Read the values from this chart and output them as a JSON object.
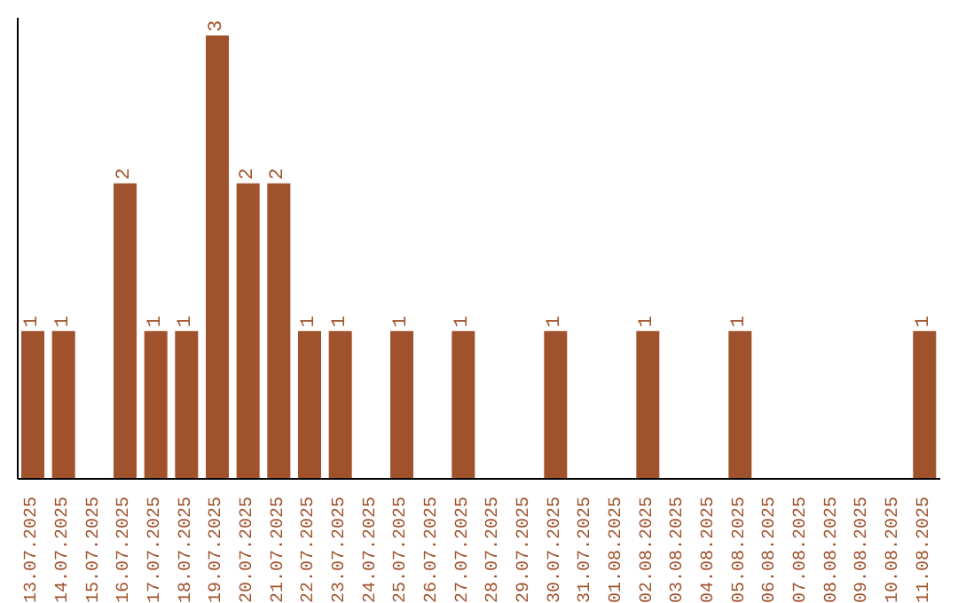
{
  "chart_data": {
    "type": "bar",
    "categories": [
      "13.07.2025",
      "14.07.2025",
      "15.07.2025",
      "16.07.2025",
      "17.07.2025",
      "18.07.2025",
      "19.07.2025",
      "20.07.2025",
      "21.07.2025",
      "22.07.2025",
      "23.07.2025",
      "24.07.2025",
      "25.07.2025",
      "26.07.2025",
      "27.07.2025",
      "28.07.2025",
      "29.07.2025",
      "30.07.2025",
      "31.07.2025",
      "01.08.2025",
      "02.08.2025",
      "03.08.2025",
      "04.08.2025",
      "05.08.2025",
      "06.08.2025",
      "07.08.2025",
      "08.08.2025",
      "09.08.2025",
      "10.08.2025",
      "11.08.2025"
    ],
    "values": [
      1,
      1,
      0,
      2,
      1,
      1,
      3,
      2,
      2,
      1,
      1,
      0,
      1,
      0,
      1,
      0,
      0,
      1,
      0,
      0,
      1,
      0,
      0,
      1,
      0,
      0,
      0,
      0,
      0,
      1
    ],
    "value_labels": [
      "1",
      "1",
      null,
      "2",
      "1",
      "1",
      "3",
      "2",
      "2",
      "1",
      "1",
      null,
      "1",
      null,
      "1",
      null,
      null,
      "1",
      null,
      null,
      "1",
      null,
      null,
      "1",
      null,
      null,
      null,
      null,
      null,
      "1"
    ],
    "color": "#a0522d",
    "tick_labels": "x",
    "grid": false,
    "legend": false
  }
}
